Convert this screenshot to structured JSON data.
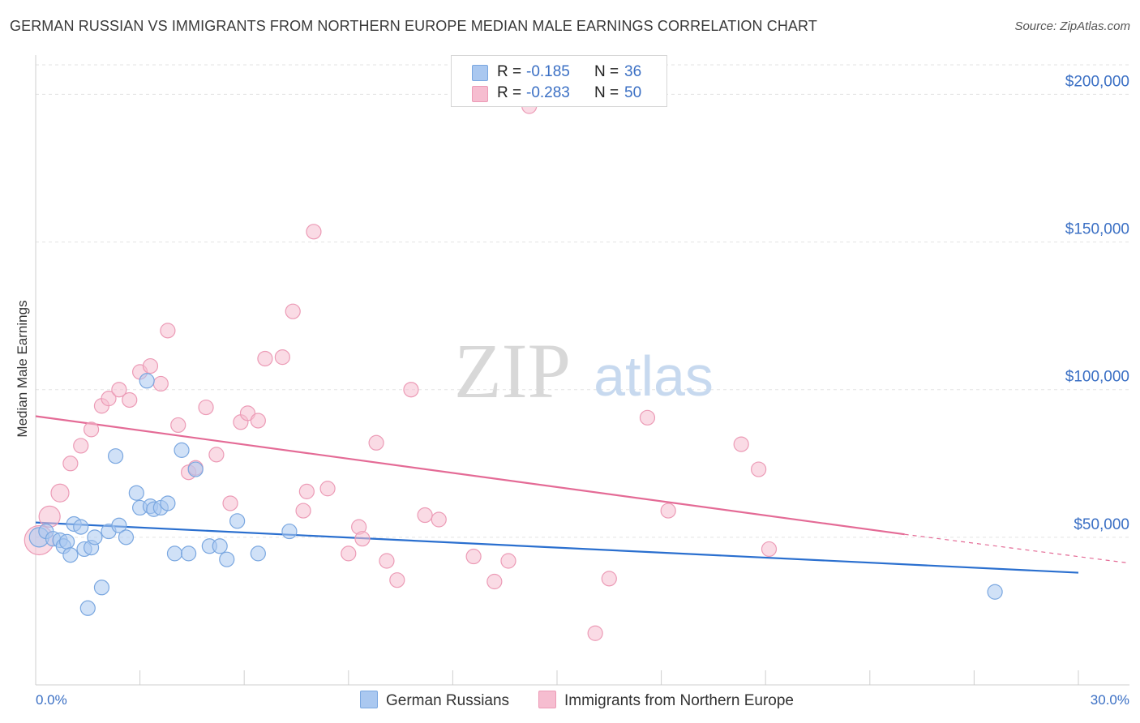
{
  "title": "GERMAN RUSSIAN VS IMMIGRANTS FROM NORTHERN EUROPE MEDIAN MALE EARNINGS CORRELATION CHART",
  "source": "Source: ZipAtlas.com",
  "watermark": {
    "zip": "ZIP",
    "atlas": "atlas"
  },
  "colors": {
    "blue_fill": "#aac8f0",
    "blue_stroke": "#7aa7e0",
    "blue_line": "#2a6fcf",
    "pink_fill": "#f6bdd0",
    "pink_stroke": "#ec9bb6",
    "pink_line": "#e46b96",
    "axis_label": "#3a6fc4",
    "grid": "#e3e3e3"
  },
  "legend_top": {
    "rows": [
      {
        "r_label": "R =",
        "r_value": "-0.185",
        "n_label": "N =",
        "n_value": "36"
      },
      {
        "r_label": "R =",
        "r_value": "-0.283",
        "n_label": "N =",
        "n_value": "50"
      }
    ]
  },
  "legend_bottom": {
    "series1": "German Russians",
    "series2": "Immigrants from Northern Europe"
  },
  "chart_data": {
    "type": "scatter",
    "title": "GERMAN RUSSIAN VS IMMIGRANTS FROM NORTHERN EUROPE MEDIAN MALE EARNINGS CORRELATION CHART",
    "xlabel": "",
    "ylabel": "Median Male Earnings",
    "xlim": [
      0,
      30
    ],
    "ylim": [
      0,
      210000
    ],
    "x_tick_labels": {
      "left": "0.0%",
      "right": "30.0%"
    },
    "y_ticks": [
      {
        "value": 50000,
        "label": "$50,000"
      },
      {
        "value": 100000,
        "label": "$100,000"
      },
      {
        "value": 150000,
        "label": "$150,000"
      },
      {
        "value": 200000,
        "label": "$200,000"
      }
    ],
    "grid": true,
    "legend_placement": "top-center",
    "series": [
      {
        "name": "German Russians",
        "color": "blue",
        "trend": {
          "x0": 0,
          "y0": 55000,
          "x1": 30,
          "y1": 38000,
          "dashed_from": null
        },
        "points": [
          [
            0.1,
            50000,
            12
          ],
          [
            0.3,
            52000,
            9
          ],
          [
            0.5,
            49500,
            9
          ],
          [
            0.7,
            49000,
            9
          ],
          [
            0.8,
            47000,
            9
          ],
          [
            0.9,
            48500,
            9
          ],
          [
            1.0,
            44000,
            9
          ],
          [
            1.1,
            54500,
            9
          ],
          [
            1.3,
            53500,
            9
          ],
          [
            1.4,
            46000,
            9
          ],
          [
            1.5,
            26000,
            9
          ],
          [
            1.6,
            46500,
            9
          ],
          [
            1.7,
            50000,
            9
          ],
          [
            1.9,
            33000,
            9
          ],
          [
            2.1,
            52000,
            9
          ],
          [
            2.3,
            77500,
            9
          ],
          [
            2.4,
            54000,
            9
          ],
          [
            2.6,
            50000,
            9
          ],
          [
            2.9,
            65000,
            9
          ],
          [
            3.0,
            60000,
            9
          ],
          [
            3.2,
            103000,
            9
          ],
          [
            3.3,
            60500,
            9
          ],
          [
            3.4,
            59500,
            9
          ],
          [
            3.6,
            60000,
            9
          ],
          [
            3.8,
            61500,
            9
          ],
          [
            4.0,
            44500,
            9
          ],
          [
            4.2,
            79500,
            9
          ],
          [
            4.4,
            44500,
            9
          ],
          [
            4.6,
            73000,
            9
          ],
          [
            5.0,
            47000,
            9
          ],
          [
            5.3,
            47000,
            9
          ],
          [
            5.5,
            42500,
            9
          ],
          [
            5.8,
            55500,
            9
          ],
          [
            6.4,
            44500,
            9
          ],
          [
            7.3,
            52000,
            9
          ],
          [
            27.6,
            31500,
            9
          ]
        ]
      },
      {
        "name": "Immigrants from Northern Europe",
        "color": "pink",
        "trend": {
          "x0": 0,
          "y0": 91000,
          "x1": 30,
          "y1": 43000,
          "dashed_from": 25
        },
        "points": [
          [
            0.1,
            49000,
            18
          ],
          [
            0.4,
            57000,
            13
          ],
          [
            0.7,
            65000,
            11
          ],
          [
            1.0,
            75000,
            9
          ],
          [
            1.3,
            81000,
            9
          ],
          [
            1.6,
            86500,
            9
          ],
          [
            1.9,
            94500,
            9
          ],
          [
            2.1,
            97000,
            9
          ],
          [
            2.4,
            100000,
            9
          ],
          [
            2.7,
            96500,
            9
          ],
          [
            3.0,
            106000,
            9
          ],
          [
            3.3,
            108000,
            9
          ],
          [
            3.6,
            102000,
            9
          ],
          [
            3.8,
            120000,
            9
          ],
          [
            4.1,
            88000,
            9
          ],
          [
            4.4,
            72000,
            9
          ],
          [
            4.6,
            73500,
            9
          ],
          [
            4.9,
            94000,
            9
          ],
          [
            5.2,
            78000,
            9
          ],
          [
            5.6,
            61500,
            9
          ],
          [
            5.9,
            89000,
            9
          ],
          [
            6.1,
            92000,
            9
          ],
          [
            6.4,
            89500,
            9
          ],
          [
            6.6,
            110500,
            9
          ],
          [
            7.1,
            111000,
            9
          ],
          [
            7.4,
            126500,
            9
          ],
          [
            7.7,
            59000,
            9
          ],
          [
            7.8,
            65500,
            9
          ],
          [
            8.0,
            153500,
            9
          ],
          [
            8.4,
            66500,
            9
          ],
          [
            9.0,
            44500,
            9
          ],
          [
            9.3,
            53500,
            9
          ],
          [
            9.4,
            49500,
            9
          ],
          [
            9.8,
            82000,
            9
          ],
          [
            10.1,
            42000,
            9
          ],
          [
            10.4,
            35500,
            9
          ],
          [
            10.8,
            100000,
            9
          ],
          [
            11.2,
            57500,
            9
          ],
          [
            11.6,
            56000,
            9
          ],
          [
            12.6,
            43500,
            9
          ],
          [
            13.2,
            35000,
            9
          ],
          [
            13.6,
            42000,
            9
          ],
          [
            14.2,
            196000,
            9
          ],
          [
            16.1,
            17500,
            9
          ],
          [
            16.5,
            36000,
            9
          ],
          [
            17.6,
            90500,
            9
          ],
          [
            18.2,
            59000,
            9
          ],
          [
            20.3,
            81500,
            9
          ],
          [
            20.8,
            73000,
            9
          ],
          [
            21.1,
            46000,
            9
          ]
        ]
      }
    ]
  }
}
